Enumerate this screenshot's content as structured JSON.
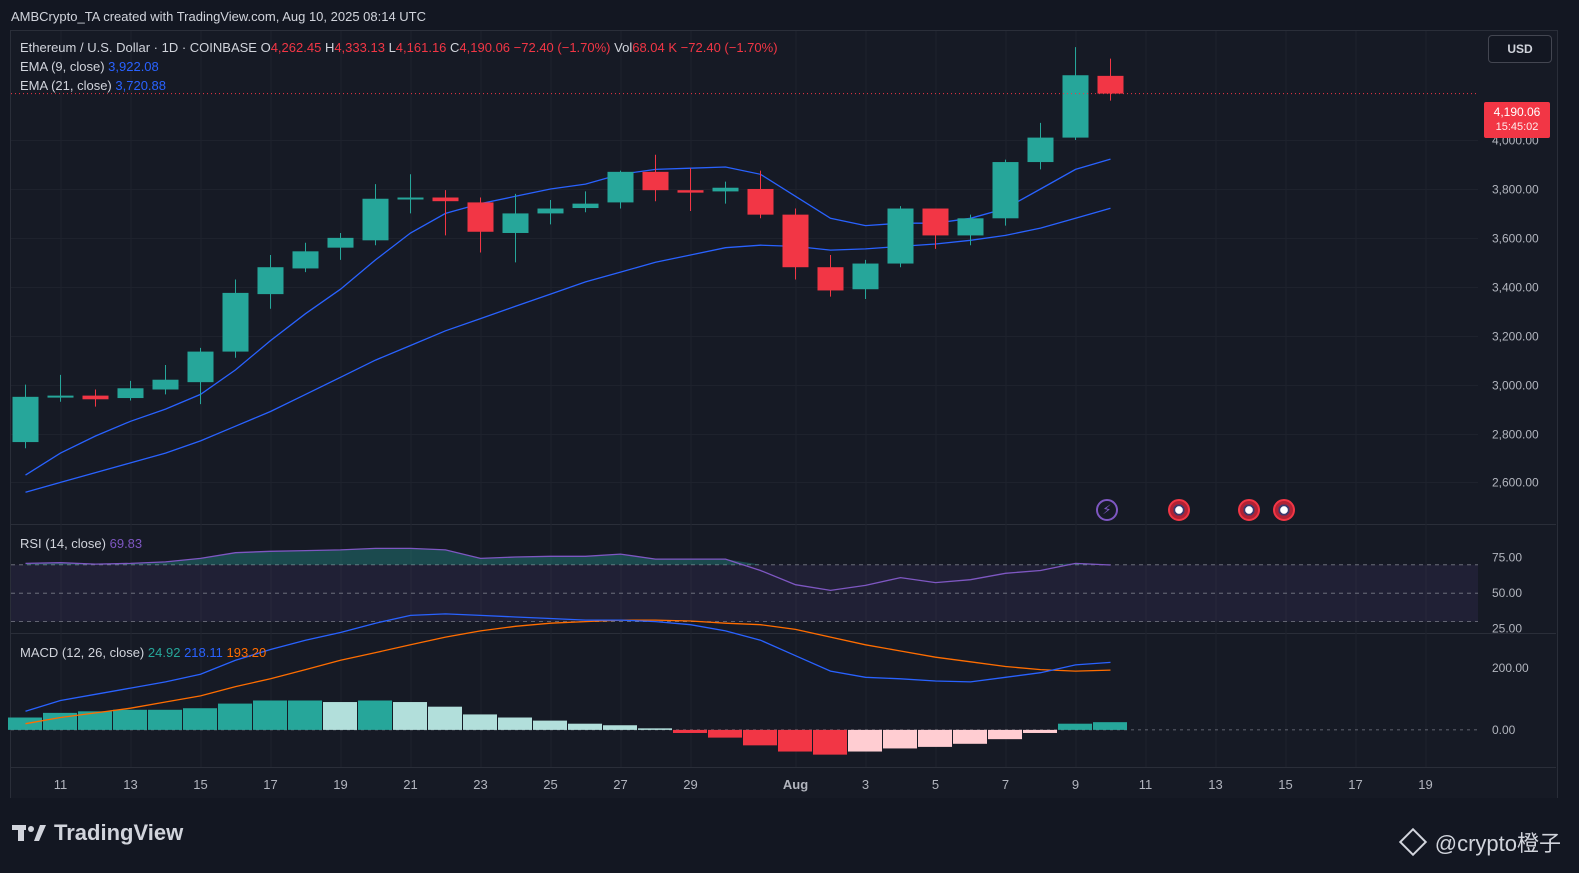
{
  "header": {
    "credit": "AMBCrypto_TA created with TradingView.com, Aug 10, 2025 08:14 UTC"
  },
  "legend": {
    "symbol": "Ethereum / U.S. Dollar · 1D · COINBASE",
    "o_label": "O",
    "o_val": "4,262.45",
    "h_label": "H",
    "h_val": "4,333.13",
    "l_label": "L",
    "l_val": "4,161.16",
    "c_label": "C",
    "c_val": "4,190.06",
    "change": "−72.40 (−1.70%)",
    "vol_label": "Vol",
    "vol_val": "68.04 K",
    "vol_change": "−72.40 (−1.70%)",
    "ema9_label": "EMA (9, close)",
    "ema9_val": "3,922.08",
    "ema21_label": "EMA (21, close)",
    "ema21_val": "3,720.88",
    "rsi_label": "RSI (14, close)",
    "rsi_val": "69.83",
    "macd_label": "MACD (12, 26, close)",
    "macd_hist_val": "24.92",
    "macd_val": "218.11",
    "signal_val": "193.20"
  },
  "currency_button": "USD",
  "price_tag": {
    "price": "4,190.06",
    "countdown": "15:45:02"
  },
  "branding": {
    "logo_text": "TradingView",
    "watermark": "@crypto橙子"
  },
  "colors": {
    "up": "#26a69a",
    "down": "#f23645",
    "ema9": "#2962ff",
    "ema21": "#2962ff",
    "rsi": "#7e57c2",
    "macd": "#2962ff",
    "signal": "#ff6d00",
    "hist_up_strong": "#26a69a",
    "hist_up_weak": "#b2dfdb",
    "hist_down_strong": "#f23645",
    "hist_down_weak": "#ffcdd2"
  },
  "chart_data": {
    "type": "candlestick",
    "price_axis": {
      "ylim": [
        2430,
        4450
      ],
      "ticks": [
        2600,
        2800,
        3000,
        3200,
        3400,
        3600,
        3800,
        4000
      ],
      "tick_labels": [
        "2,600.00",
        "2,800.00",
        "3,000.00",
        "3,200.00",
        "3,400.00",
        "3,600.00",
        "3,800.00",
        "4,000.00"
      ]
    },
    "x_ticks": [
      {
        "i": 1,
        "label": "11"
      },
      {
        "i": 3,
        "label": "13"
      },
      {
        "i": 5,
        "label": "15"
      },
      {
        "i": 7,
        "label": "17"
      },
      {
        "i": 9,
        "label": "19"
      },
      {
        "i": 11,
        "label": "21"
      },
      {
        "i": 13,
        "label": "23"
      },
      {
        "i": 15,
        "label": "25"
      },
      {
        "i": 17,
        "label": "27"
      },
      {
        "i": 19,
        "label": "29"
      },
      {
        "i": 22,
        "label": "Aug"
      },
      {
        "i": 24,
        "label": "3"
      },
      {
        "i": 26,
        "label": "5"
      },
      {
        "i": 28,
        "label": "7"
      },
      {
        "i": 30,
        "label": "9"
      },
      {
        "i": 32,
        "label": "11"
      },
      {
        "i": 34,
        "label": "13"
      },
      {
        "i": 36,
        "label": "15"
      },
      {
        "i": 38,
        "label": "17"
      },
      {
        "i": 40,
        "label": "19"
      }
    ],
    "candles": [
      {
        "o": 2765,
        "h": 3000,
        "l": 2740,
        "c": 2950
      },
      {
        "o": 2950,
        "h": 3040,
        "l": 2930,
        "c": 2955
      },
      {
        "o": 2955,
        "h": 2980,
        "l": 2910,
        "c": 2940
      },
      {
        "o": 2945,
        "h": 3015,
        "l": 2935,
        "c": 2985
      },
      {
        "o": 2980,
        "h": 3080,
        "l": 2960,
        "c": 3020
      },
      {
        "o": 3010,
        "h": 3150,
        "l": 2920,
        "c": 3135
      },
      {
        "o": 3135,
        "h": 3430,
        "l": 3110,
        "c": 3375
      },
      {
        "o": 3370,
        "h": 3530,
        "l": 3310,
        "c": 3480
      },
      {
        "o": 3475,
        "h": 3580,
        "l": 3460,
        "c": 3545
      },
      {
        "o": 3560,
        "h": 3620,
        "l": 3510,
        "c": 3600
      },
      {
        "o": 3590,
        "h": 3820,
        "l": 3570,
        "c": 3760
      },
      {
        "o": 3758,
        "h": 3860,
        "l": 3700,
        "c": 3765
      },
      {
        "o": 3765,
        "h": 3795,
        "l": 3610,
        "c": 3750
      },
      {
        "o": 3745,
        "h": 3765,
        "l": 3540,
        "c": 3625
      },
      {
        "o": 3620,
        "h": 3780,
        "l": 3500,
        "c": 3700
      },
      {
        "o": 3700,
        "h": 3755,
        "l": 3655,
        "c": 3720
      },
      {
        "o": 3722,
        "h": 3790,
        "l": 3705,
        "c": 3740
      },
      {
        "o": 3745,
        "h": 3875,
        "l": 3720,
        "c": 3870
      },
      {
        "o": 3870,
        "h": 3940,
        "l": 3750,
        "c": 3795
      },
      {
        "o": 3795,
        "h": 3885,
        "l": 3710,
        "c": 3785
      },
      {
        "o": 3790,
        "h": 3830,
        "l": 3740,
        "c": 3805
      },
      {
        "o": 3800,
        "h": 3875,
        "l": 3680,
        "c": 3695
      },
      {
        "o": 3695,
        "h": 3720,
        "l": 3430,
        "c": 3480
      },
      {
        "o": 3480,
        "h": 3530,
        "l": 3360,
        "c": 3385
      },
      {
        "o": 3390,
        "h": 3510,
        "l": 3350,
        "c": 3495
      },
      {
        "o": 3495,
        "h": 3730,
        "l": 3480,
        "c": 3720
      },
      {
        "o": 3720,
        "h": 3720,
        "l": 3555,
        "c": 3610
      },
      {
        "o": 3610,
        "h": 3695,
        "l": 3570,
        "c": 3680
      },
      {
        "o": 3680,
        "h": 3920,
        "l": 3650,
        "c": 3910
      },
      {
        "o": 3910,
        "h": 4070,
        "l": 3880,
        "c": 4010
      },
      {
        "o": 4010,
        "h": 4380,
        "l": 4000,
        "c": 4265
      },
      {
        "o": 4262.45,
        "h": 4333.13,
        "l": 4161.16,
        "c": 4190.06
      }
    ],
    "ema9": [
      2630,
      2720,
      2790,
      2850,
      2900,
      2960,
      3060,
      3180,
      3290,
      3390,
      3510,
      3620,
      3700,
      3740,
      3770,
      3800,
      3820,
      3860,
      3880,
      3885,
      3890,
      3860,
      3770,
      3680,
      3650,
      3660,
      3660,
      3680,
      3720,
      3800,
      3880,
      3922.08
    ],
    "ema21": [
      2560,
      2600,
      2640,
      2680,
      2720,
      2770,
      2830,
      2890,
      2960,
      3030,
      3100,
      3160,
      3220,
      3270,
      3320,
      3370,
      3420,
      3460,
      3500,
      3530,
      3560,
      3570,
      3565,
      3550,
      3555,
      3565,
      3575,
      3590,
      3610,
      3640,
      3680,
      3720.88
    ],
    "rsi": {
      "ylim": [
        22,
        98
      ],
      "levels": [
        70,
        50,
        30
      ],
      "tick_labels": [
        {
          "v": 75,
          "label": "75.00"
        },
        {
          "v": 50,
          "label": "50.00"
        },
        {
          "v": 25,
          "label": "25.00"
        }
      ],
      "values": [
        71,
        71.5,
        70.5,
        71,
        72,
        74.5,
        78.5,
        79.5,
        80,
        80.5,
        81.5,
        81.5,
        80.5,
        74.5,
        75.5,
        76,
        76,
        77.5,
        74,
        74,
        74,
        66,
        56,
        52,
        55.5,
        61,
        57.5,
        59.5,
        64,
        66,
        71,
        69.83
      ]
    },
    "macd": {
      "ylim": [
        -120,
        310
      ],
      "tick_labels": [
        {
          "v": 200,
          "label": "200.00"
        },
        {
          "v": 0,
          "label": "0.00"
        }
      ],
      "macd": [
        60,
        95,
        115,
        135,
        155,
        180,
        225,
        260,
        290,
        315,
        345,
        370,
        375,
        370,
        365,
        360,
        355,
        355,
        350,
        340,
        320,
        290,
        240,
        190,
        170,
        165,
        158,
        155,
        170,
        185,
        210,
        218.11
      ],
      "signal": [
        20,
        40,
        55,
        70,
        90,
        110,
        140,
        165,
        195,
        225,
        250,
        275,
        300,
        320,
        335,
        345,
        350,
        355,
        355,
        352,
        345,
        340,
        325,
        300,
        275,
        255,
        235,
        220,
        205,
        195,
        190,
        193.2
      ],
      "hist": [
        40,
        55,
        60,
        65,
        65,
        70,
        85,
        95,
        95,
        90,
        95,
        90,
        75,
        50,
        40,
        30,
        20,
        15,
        5,
        -10,
        -25,
        -50,
        -70,
        -80,
        -70,
        -60,
        -55,
        -45,
        -30,
        -10,
        20,
        24.92
      ]
    }
  }
}
